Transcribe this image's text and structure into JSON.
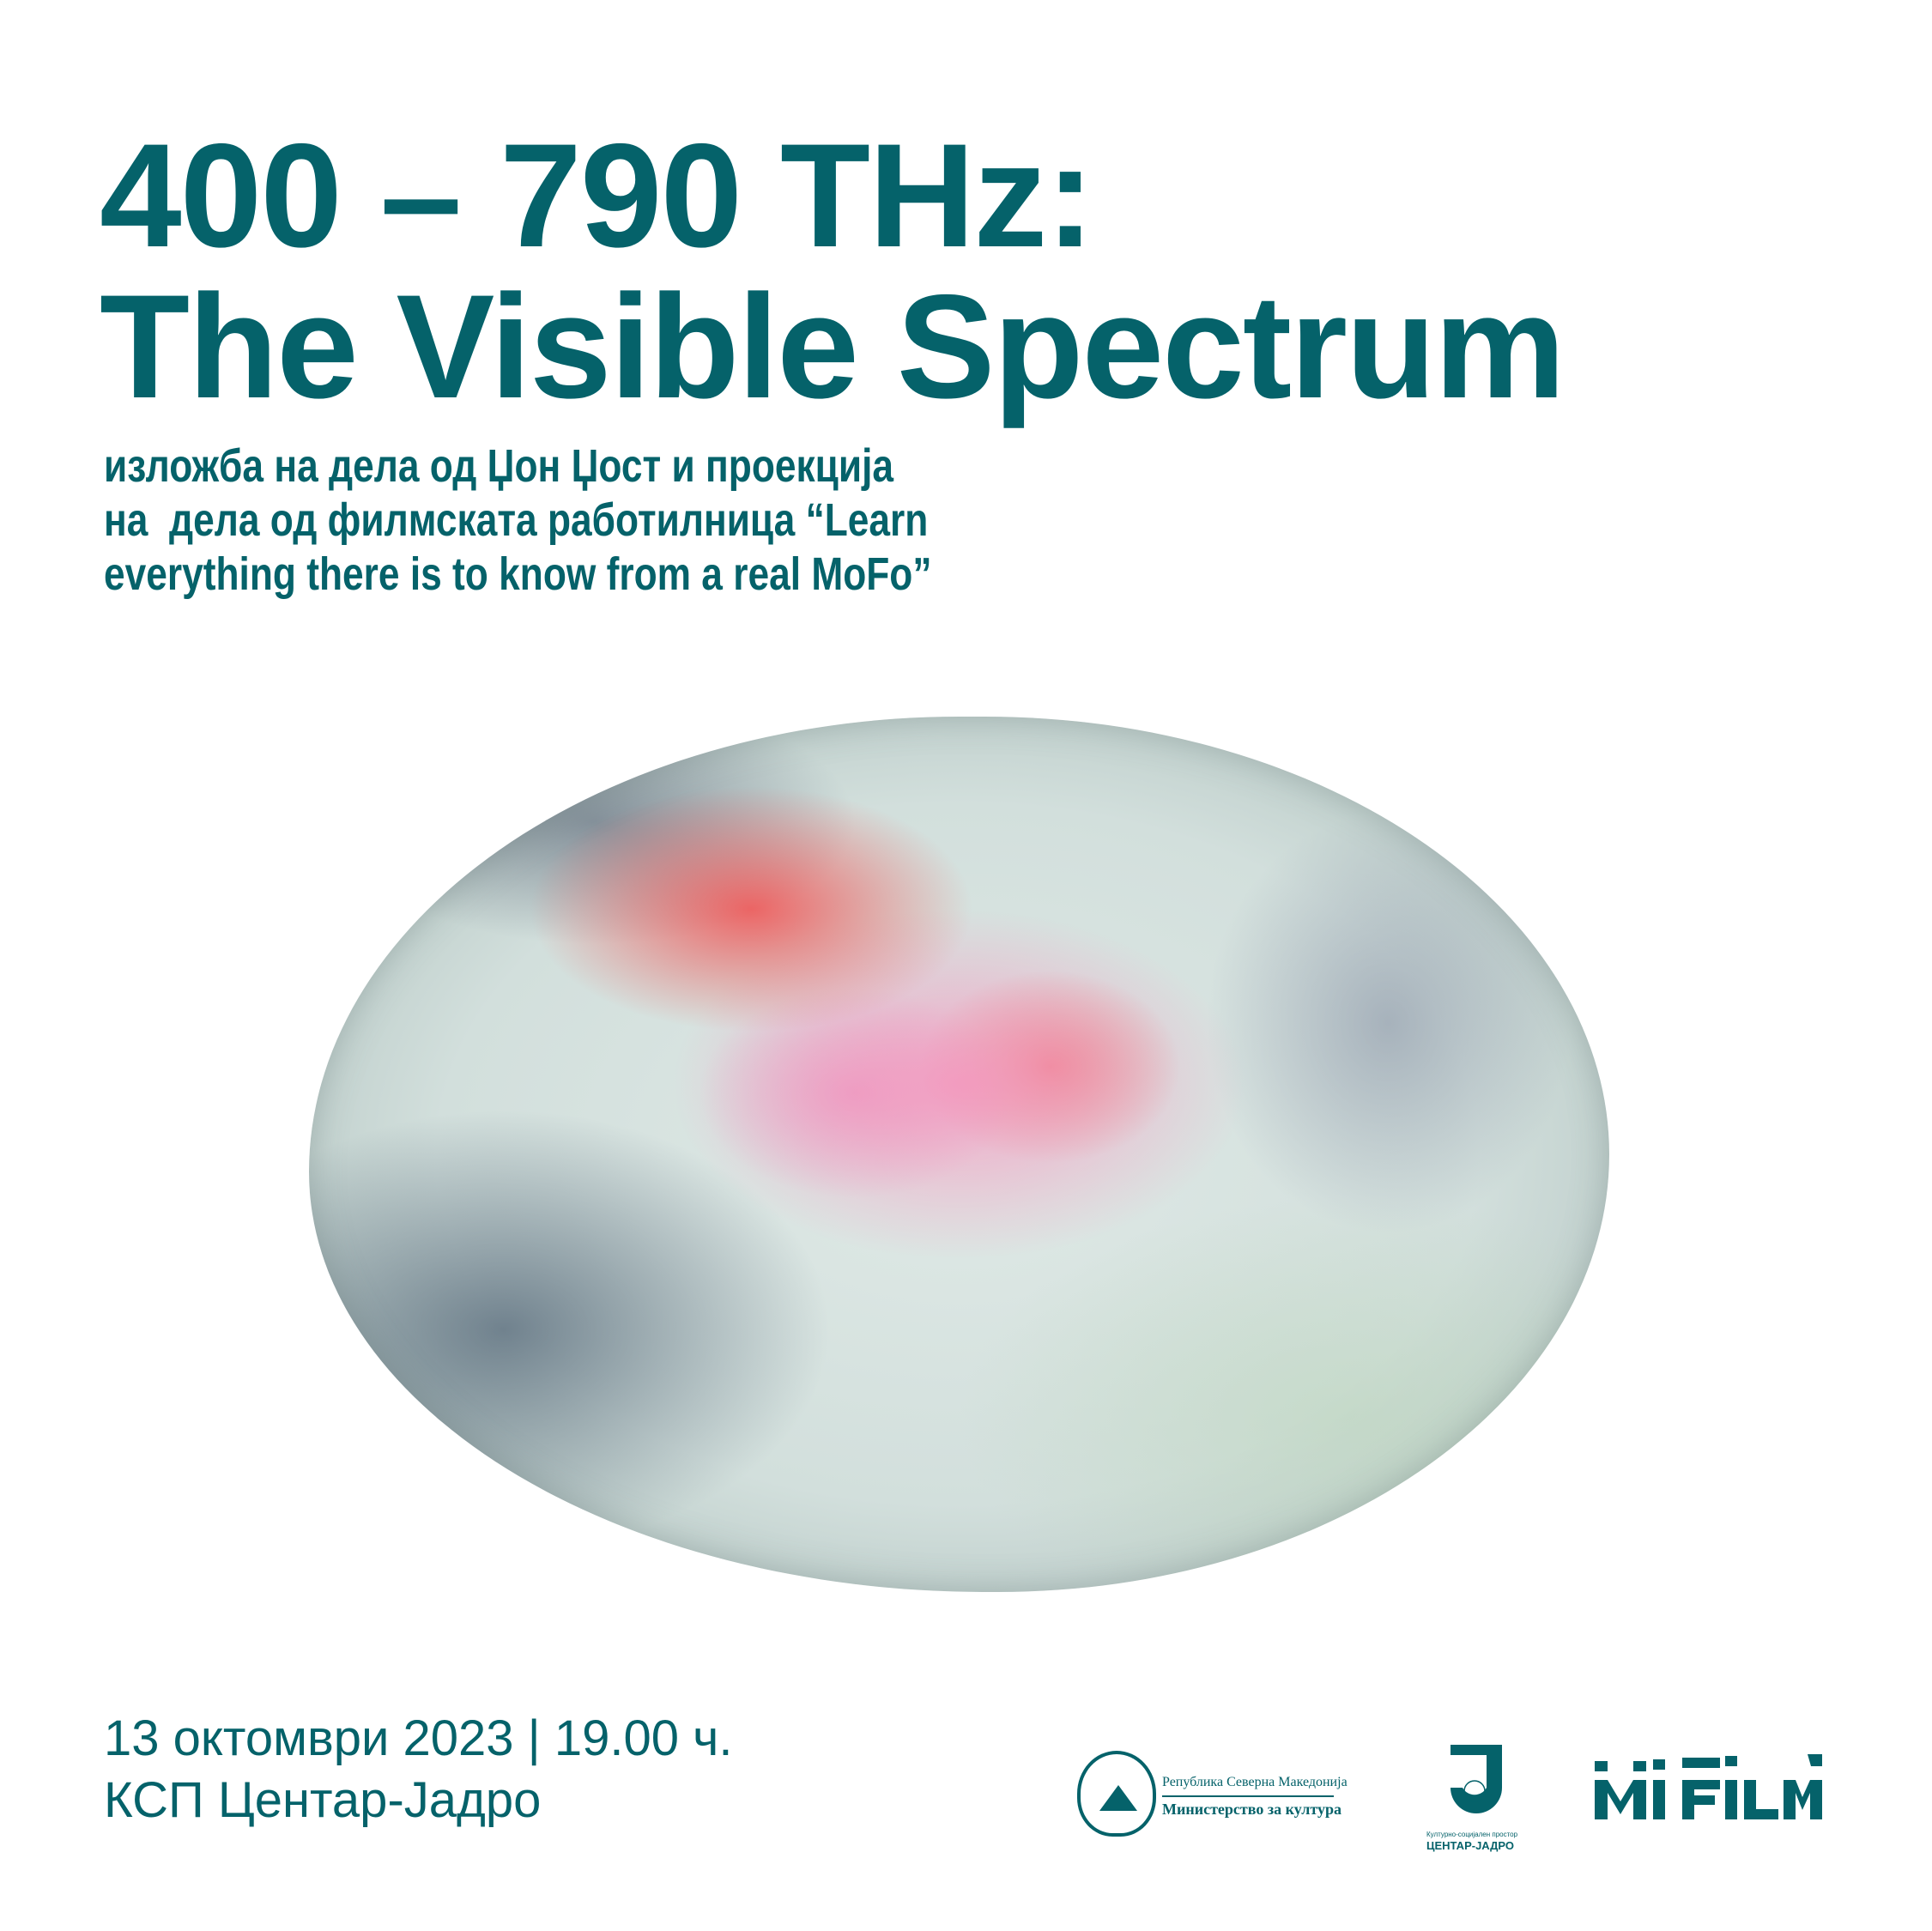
{
  "title": {
    "line1": "400 – 790 THz:",
    "line2": "The Visible Spectrum"
  },
  "subtitle": {
    "line1": "изложба на дела од Џон Џост и проекција",
    "line2": "на  дела од филмската работилница “Learn",
    "line3": "everything there is to know from a real MoFo”"
  },
  "event": {
    "datetime": "13 октомври 2023 | 19.00 ч.",
    "venue": "КСП Центар-Јадро"
  },
  "logos": {
    "ministry_line1": "Република Северна Македонија",
    "ministry_line2": "Министерство за култура",
    "centar_line1": "Културно-социјален простор",
    "centar_line2": "ЦЕНТАР-ЈАДРО",
    "mifilm": "Mi FiLM"
  },
  "colors": {
    "brand": "#05626a",
    "background": "#ffffff"
  }
}
